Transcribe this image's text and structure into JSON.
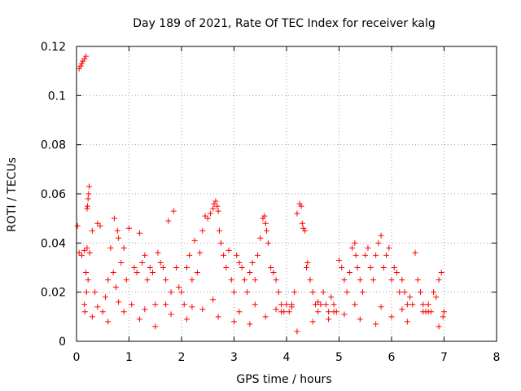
{
  "chart_data": {
    "type": "scatter",
    "title": "Day 189 of 2021, Rate Of TEC Index for receiver kalg",
    "xlabel": "GPS time / hours",
    "ylabel": "ROTI / TECUs",
    "xlim": [
      0,
      8
    ],
    "ylim": [
      0,
      0.12
    ],
    "xticks": [
      0,
      1,
      2,
      3,
      4,
      5,
      6,
      7,
      8
    ],
    "xtick_labels": [
      "0",
      "1",
      "2",
      "3",
      "4",
      "5",
      "6",
      "7",
      "8"
    ],
    "yticks": [
      0,
      0.02,
      0.04,
      0.06,
      0.08,
      0.1,
      0.12
    ],
    "ytick_labels": [
      "0",
      "0.02",
      "0.04",
      "0.06",
      "0.08",
      "0.1",
      "0.12"
    ],
    "grid": true,
    "marker": "+",
    "color": "#ff0000",
    "series": [
      {
        "name": "ROTI",
        "x": [
          0.05,
          0.08,
          0.1,
          0.12,
          0.15,
          0.18,
          0.02,
          0.05,
          0.1,
          0.15,
          0.2,
          0.25,
          0.2,
          0.21,
          0.22,
          0.23,
          0.24,
          0.22,
          0.18,
          0.19,
          0.15,
          0.16,
          0.3,
          0.35,
          0.4,
          0.45,
          0.5,
          0.55,
          0.6,
          0.65,
          0.7,
          0.72,
          0.75,
          0.78,
          0.8,
          0.85,
          0.9,
          0.95,
          1.0,
          1.05,
          1.1,
          1.15,
          1.2,
          1.25,
          1.3,
          1.35,
          1.4,
          1.45,
          1.5,
          1.55,
          1.6,
          1.65,
          1.7,
          1.75,
          1.8,
          1.85,
          1.9,
          1.95,
          2.0,
          2.05,
          2.1,
          2.15,
          2.2,
          2.25,
          2.3,
          2.35,
          2.4,
          2.45,
          2.5,
          2.55,
          2.6,
          2.62,
          2.65,
          2.68,
          2.7,
          2.72,
          2.75,
          2.8,
          2.85,
          2.9,
          2.95,
          3.0,
          3.05,
          3.1,
          3.15,
          3.2,
          3.25,
          3.3,
          3.35,
          3.4,
          3.45,
          3.5,
          3.55,
          3.58,
          3.6,
          3.62,
          3.65,
          3.7,
          3.75,
          3.8,
          3.85,
          3.9,
          3.95,
          4.0,
          4.05,
          4.1,
          4.15,
          4.2,
          4.25,
          4.28,
          4.3,
          4.32,
          4.35,
          4.38,
          4.4,
          4.45,
          4.5,
          4.55,
          4.6,
          4.65,
          4.7,
          4.75,
          4.8,
          4.85,
          4.9,
          4.95,
          5.0,
          5.05,
          5.1,
          5.15,
          5.2,
          5.25,
          5.3,
          5.32,
          5.35,
          5.4,
          5.45,
          5.5,
          5.55,
          5.6,
          5.65,
          5.7,
          5.75,
          5.8,
          5.85,
          5.9,
          5.95,
          6.0,
          6.05,
          6.1,
          6.15,
          6.2,
          6.25,
          6.3,
          6.35,
          6.4,
          6.45,
          6.5,
          6.55,
          6.6,
          6.65,
          6.7,
          6.75,
          6.8,
          6.85,
          6.9,
          6.95,
          7.0,
          0.3,
          0.6,
          0.9,
          1.2,
          1.5,
          1.8,
          2.1,
          2.4,
          2.7,
          3.0,
          3.3,
          3.6,
          3.9,
          4.2,
          4.5,
          4.8,
          5.1,
          5.4,
          5.7,
          6.0,
          6.3,
          6.6,
          6.9,
          0.4,
          0.8,
          1.3,
          1.7,
          2.2,
          2.6,
          3.1,
          3.4,
          3.8,
          4.1,
          4.6,
          4.9,
          5.3,
          5.8,
          6.2,
          6.7,
          6.98
        ],
        "y": [
          0.111,
          0.112,
          0.113,
          0.114,
          0.115,
          0.116,
          0.047,
          0.036,
          0.035,
          0.037,
          0.038,
          0.036,
          0.054,
          0.055,
          0.058,
          0.06,
          0.063,
          0.025,
          0.028,
          0.02,
          0.015,
          0.012,
          0.045,
          0.02,
          0.048,
          0.047,
          0.012,
          0.018,
          0.025,
          0.038,
          0.028,
          0.05,
          0.022,
          0.045,
          0.042,
          0.032,
          0.038,
          0.025,
          0.046,
          0.015,
          0.03,
          0.028,
          0.044,
          0.032,
          0.035,
          0.025,
          0.03,
          0.028,
          0.015,
          0.036,
          0.032,
          0.03,
          0.025,
          0.049,
          0.02,
          0.053,
          0.03,
          0.022,
          0.02,
          0.015,
          0.03,
          0.035,
          0.025,
          0.041,
          0.028,
          0.036,
          0.045,
          0.051,
          0.05,
          0.052,
          0.054,
          0.056,
          0.057,
          0.055,
          0.053,
          0.045,
          0.04,
          0.035,
          0.03,
          0.037,
          0.025,
          0.02,
          0.035,
          0.032,
          0.03,
          0.025,
          0.02,
          0.028,
          0.032,
          0.025,
          0.035,
          0.042,
          0.05,
          0.051,
          0.048,
          0.045,
          0.04,
          0.03,
          0.028,
          0.025,
          0.02,
          0.015,
          0.012,
          0.015,
          0.012,
          0.015,
          0.02,
          0.052,
          0.056,
          0.055,
          0.048,
          0.046,
          0.045,
          0.03,
          0.032,
          0.025,
          0.02,
          0.015,
          0.012,
          0.015,
          0.02,
          0.015,
          0.012,
          0.018,
          0.015,
          0.012,
          0.033,
          0.03,
          0.025,
          0.02,
          0.028,
          0.038,
          0.04,
          0.035,
          0.03,
          0.025,
          0.02,
          0.035,
          0.038,
          0.03,
          0.025,
          0.035,
          0.04,
          0.043,
          0.03,
          0.035,
          0.038,
          0.025,
          0.03,
          0.028,
          0.02,
          0.025,
          0.02,
          0.015,
          0.018,
          0.015,
          0.036,
          0.025,
          0.02,
          0.015,
          0.012,
          0.015,
          0.012,
          0.02,
          0.018,
          0.025,
          0.028,
          0.012,
          0.01,
          0.008,
          0.012,
          0.009,
          0.006,
          0.011,
          0.009,
          0.013,
          0.01,
          0.008,
          0.007,
          0.01,
          0.012,
          0.004,
          0.008,
          0.009,
          0.011,
          0.009,
          0.007,
          0.01,
          0.008,
          0.012,
          0.006,
          0.014,
          0.016,
          0.013,
          0.015,
          0.014,
          0.017,
          0.012,
          0.015,
          0.013,
          0.014,
          0.016,
          0.012,
          0.015,
          0.014,
          0.013,
          0.012,
          0.01
        ]
      }
    ]
  }
}
